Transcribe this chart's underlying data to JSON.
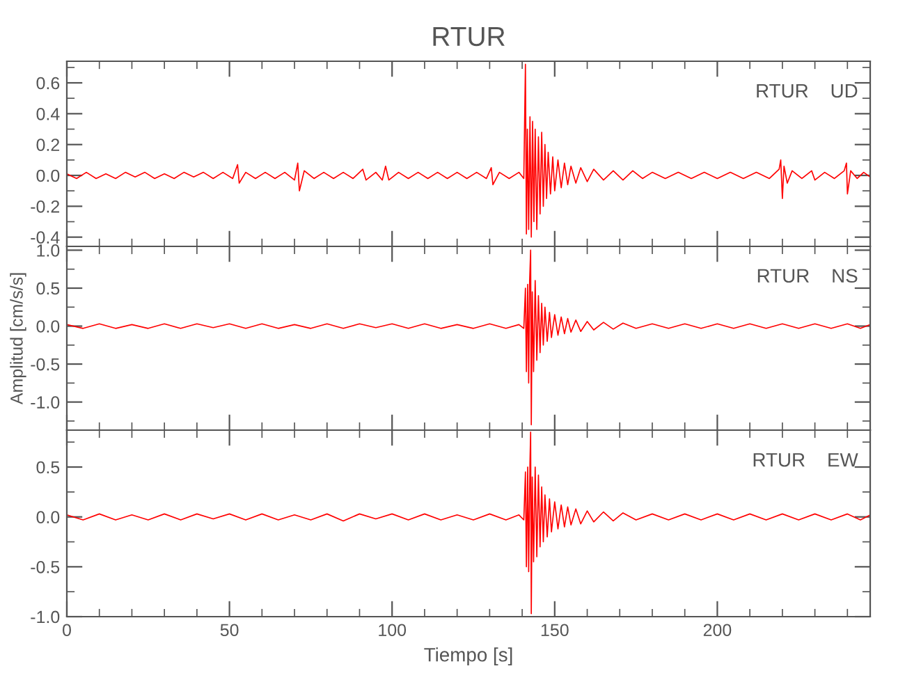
{
  "chart_data": [
    {
      "type": "line",
      "title": "RTUR",
      "annotations": [
        "RTUR    UD"
      ],
      "xlim": [
        0,
        247
      ],
      "ylim": [
        -0.46,
        0.74
      ],
      "xticks": [
        0,
        50,
        100,
        150,
        200
      ],
      "yticks": [
        -0.4,
        -0.2,
        {
          "value": 0,
          "label": "0.0"
        },
        0.2,
        0.4,
        0.6
      ],
      "tick_labels": "y",
      "grid": false,
      "series": [
        {
          "color": "#ff0000",
          "x": [
            0,
            3,
            6,
            9,
            12,
            15,
            18,
            21,
            24,
            27,
            30,
            33,
            36,
            39,
            42,
            45,
            48,
            51,
            52.5,
            53,
            55,
            58,
            61,
            64,
            67,
            70,
            71,
            71.5,
            73,
            76,
            79,
            82,
            85,
            88,
            91,
            92,
            95,
            97,
            98,
            99,
            102,
            105,
            108,
            111,
            114,
            117,
            120,
            123,
            126,
            129,
            130.5,
            131,
            133,
            136,
            139,
            140.5,
            141,
            141.3,
            141.6,
            142,
            142.4,
            142.8,
            143.2,
            143.6,
            144,
            144.5,
            145,
            145.5,
            146,
            146.5,
            147,
            147.5,
            148,
            148.7,
            149.4,
            150,
            151,
            152,
            153,
            154,
            155,
            156.5,
            158,
            160,
            162,
            165,
            168,
            171,
            174,
            177,
            180,
            184,
            188,
            192,
            196,
            200,
            204,
            208,
            212,
            216,
            219,
            219.5,
            220,
            220.5,
            221.5,
            223,
            226,
            229,
            230,
            233,
            236,
            239,
            239.7,
            240,
            241,
            243,
            245,
            247
          ],
          "values": [
            0.01,
            -0.02,
            0.02,
            -0.02,
            0.01,
            -0.02,
            0.02,
            -0.01,
            0.02,
            -0.02,
            0.01,
            -0.02,
            0.02,
            -0.01,
            0.02,
            -0.02,
            0.02,
            -0.02,
            0.07,
            -0.05,
            0.02,
            -0.02,
            0.02,
            -0.02,
            0.02,
            -0.03,
            0.08,
            -0.1,
            0.03,
            -0.02,
            0.02,
            -0.02,
            0.02,
            -0.02,
            0.04,
            -0.03,
            0.02,
            -0.03,
            0.06,
            -0.03,
            0.02,
            -0.02,
            0.02,
            -0.02,
            0.02,
            -0.02,
            0.02,
            -0.02,
            0.02,
            -0.02,
            0.05,
            -0.06,
            0.02,
            -0.02,
            0.02,
            -0.02,
            0.72,
            -0.38,
            0.3,
            -0.35,
            0.38,
            -0.4,
            0.35,
            -0.3,
            0.3,
            -0.35,
            0.25,
            -0.25,
            0.28,
            -0.2,
            0.2,
            -0.15,
            0.15,
            -0.12,
            0.12,
            -0.1,
            0.1,
            -0.08,
            0.08,
            -0.06,
            0.06,
            -0.05,
            0.05,
            -0.04,
            0.04,
            -0.03,
            0.03,
            -0.03,
            0.03,
            -0.02,
            0.02,
            -0.02,
            0.02,
            -0.02,
            0.02,
            -0.02,
            0.02,
            -0.02,
            0.02,
            -0.02,
            0.04,
            0.1,
            -0.15,
            0.06,
            -0.05,
            0.03,
            -0.02,
            0.03,
            -0.03,
            0.02,
            -0.02,
            0.03,
            0.08,
            -0.12,
            0.03,
            -0.02,
            0.02,
            -0.01
          ]
        }
      ]
    },
    {
      "type": "line",
      "ylabel": "Amplitud [cm/s/s]",
      "annotations": [
        "RTUR    NS"
      ],
      "xlim": [
        0,
        247
      ],
      "ylim": [
        -1.37,
        1.05
      ],
      "xticks": [
        0,
        50,
        100,
        150,
        200
      ],
      "yticks": [
        {
          "value": -1,
          "label": "-1.0"
        },
        -0.5,
        {
          "value": 0,
          "label": "0.0"
        },
        0.5,
        {
          "value": 1,
          "label": "1.0"
        }
      ],
      "tick_labels": "y",
      "grid": false,
      "series": [
        {
          "color": "#ff0000",
          "x": [
            0,
            5,
            10,
            15,
            20,
            25,
            30,
            35,
            40,
            45,
            50,
            55,
            60,
            65,
            70,
            75,
            80,
            85,
            90,
            95,
            100,
            105,
            110,
            115,
            120,
            125,
            130,
            135,
            139,
            140.5,
            141,
            141.3,
            141.7,
            142,
            142.3,
            142.6,
            142.8,
            143.1,
            143.5,
            144,
            144.5,
            145,
            145.5,
            146,
            146.5,
            147,
            147.7,
            148.4,
            149,
            150,
            151,
            152,
            153,
            154,
            155,
            156.5,
            158,
            160,
            162,
            165,
            168,
            171,
            175,
            180,
            185,
            190,
            195,
            200,
            205,
            210,
            215,
            220,
            225,
            230,
            235,
            240,
            244,
            247
          ],
          "values": [
            0.02,
            -0.03,
            0.03,
            -0.03,
            0.02,
            -0.03,
            0.03,
            -0.03,
            0.03,
            -0.02,
            0.03,
            -0.03,
            0.03,
            -0.03,
            0.02,
            -0.03,
            0.03,
            -0.03,
            0.03,
            -0.02,
            0.03,
            -0.03,
            0.03,
            -0.03,
            0.02,
            -0.03,
            0.03,
            -0.03,
            0.02,
            -0.03,
            0.5,
            -0.6,
            0.55,
            -0.75,
            0.6,
            1.0,
            -1.3,
            0.45,
            -0.6,
            0.6,
            -0.45,
            0.4,
            -0.35,
            0.3,
            -0.25,
            0.25,
            -0.2,
            0.18,
            -0.15,
            0.15,
            -0.12,
            0.12,
            -0.1,
            0.1,
            -0.08,
            0.08,
            -0.07,
            0.06,
            -0.05,
            0.05,
            -0.04,
            0.04,
            -0.03,
            0.03,
            -0.03,
            0.03,
            -0.03,
            0.03,
            -0.03,
            0.03,
            -0.03,
            0.03,
            -0.03,
            0.03,
            -0.03,
            0.03,
            -0.03,
            0.02
          ]
        }
      ]
    },
    {
      "type": "line",
      "xlabel": "Tiempo [s]",
      "annotations": [
        "RTUR    EW"
      ],
      "xlim": [
        0,
        247
      ],
      "ylim": [
        -1.0,
        0.87
      ],
      "xticks": [
        0,
        50,
        100,
        150,
        200
      ],
      "yticks": [
        {
          "value": -1,
          "label": "-1.0"
        },
        -0.5,
        {
          "value": 0,
          "label": "0.0"
        },
        0.5
      ],
      "grid": false,
      "series": [
        {
          "color": "#ff0000",
          "x": [
            0,
            5,
            10,
            15,
            20,
            25,
            30,
            35,
            40,
            45,
            50,
            55,
            60,
            65,
            70,
            75,
            80,
            85,
            90,
            95,
            100,
            105,
            110,
            115,
            120,
            125,
            130,
            135,
            139,
            140.5,
            141,
            141.3,
            141.7,
            142,
            142.4,
            142.6,
            142.8,
            143.1,
            143.5,
            144,
            144.5,
            145,
            145.5,
            146,
            146.5,
            147,
            147.7,
            148.4,
            149,
            150,
            151,
            152,
            153,
            154,
            155,
            156.5,
            158,
            160,
            162,
            165,
            168,
            171,
            175,
            180,
            185,
            190,
            195,
            200,
            205,
            210,
            215,
            220,
            225,
            230,
            235,
            240,
            244,
            247
          ],
          "values": [
            0.02,
            -0.03,
            0.03,
            -0.03,
            0.02,
            -0.03,
            0.03,
            -0.03,
            0.03,
            -0.02,
            0.03,
            -0.03,
            0.03,
            -0.03,
            0.02,
            -0.03,
            0.03,
            -0.04,
            0.03,
            -0.02,
            0.03,
            -0.03,
            0.03,
            -0.03,
            0.02,
            -0.03,
            0.03,
            -0.03,
            0.02,
            -0.03,
            0.45,
            -0.5,
            0.5,
            -0.55,
            0.55,
            0.85,
            -0.97,
            0.4,
            -0.45,
            0.5,
            -0.4,
            0.42,
            -0.3,
            0.3,
            -0.25,
            0.22,
            -0.2,
            0.18,
            -0.15,
            0.15,
            -0.12,
            0.12,
            -0.1,
            0.1,
            -0.08,
            0.08,
            -0.07,
            0.06,
            -0.05,
            0.05,
            -0.04,
            0.04,
            -0.03,
            0.03,
            -0.03,
            0.03,
            -0.03,
            0.03,
            -0.03,
            0.03,
            -0.03,
            0.03,
            -0.03,
            0.03,
            -0.03,
            0.03,
            -0.03,
            0.02
          ]
        }
      ]
    }
  ]
}
